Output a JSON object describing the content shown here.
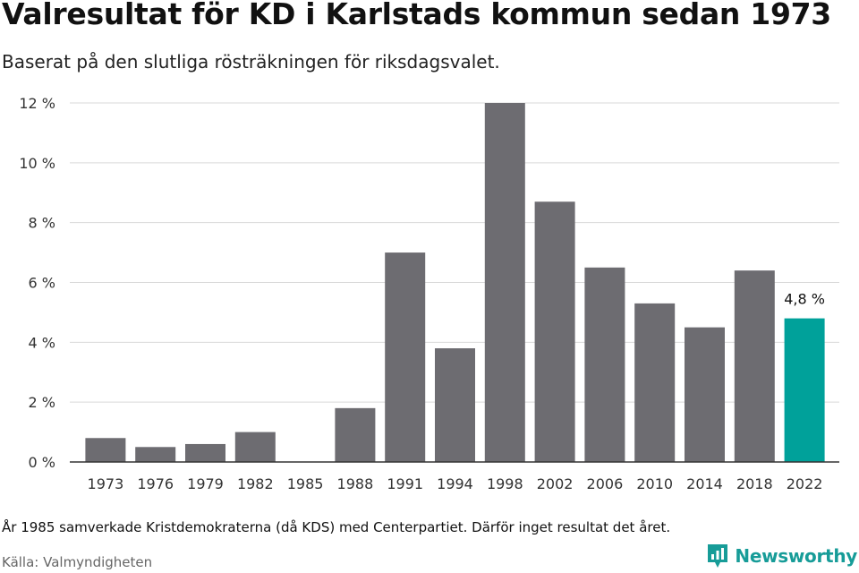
{
  "header": {
    "title": "Valresultat för KD i Karlstads kommun sedan 1973",
    "subtitle": "Baserat på den slutliga rösträkningen för riksdagsvalet."
  },
  "footer": {
    "note": "År 1985 samverkade Kristdemokraterna (då KDS) med Centerpartiet. Därför inget resultat det året.",
    "source": "Källa: Valmyndigheten",
    "brand": "Newsworthy"
  },
  "colors": {
    "bar": "#6d6c71",
    "highlight": "#00a19a",
    "brand": "#179c98",
    "grid": "#d9d9d9",
    "axis": "#333333"
  },
  "chart_data": {
    "type": "bar",
    "title": "Valresultat för KD i Karlstads kommun sedan 1973",
    "subtitle": "Baserat på den slutliga rösträkningen för riksdagsvalet.",
    "xlabel": "",
    "ylabel": "",
    "categories": [
      "1973",
      "1976",
      "1979",
      "1982",
      "1985",
      "1988",
      "1991",
      "1994",
      "1998",
      "2002",
      "2006",
      "2010",
      "2014",
      "2018",
      "2022"
    ],
    "values": [
      0.8,
      0.5,
      0.6,
      1.0,
      null,
      1.8,
      7.0,
      3.8,
      12.0,
      8.7,
      6.5,
      5.3,
      4.5,
      6.4,
      4.8
    ],
    "ylim": [
      0,
      12
    ],
    "yticks": [
      0,
      2,
      4,
      6,
      8,
      10,
      12
    ],
    "ytick_labels": [
      "0 %",
      "2 %",
      "4 %",
      "6 %",
      "8 %",
      "10 %",
      "12 %"
    ],
    "highlight_category": "2022",
    "data_labels": [
      {
        "category": "2022",
        "text": "4,8 %"
      }
    ],
    "grid": true,
    "legend": "none"
  }
}
